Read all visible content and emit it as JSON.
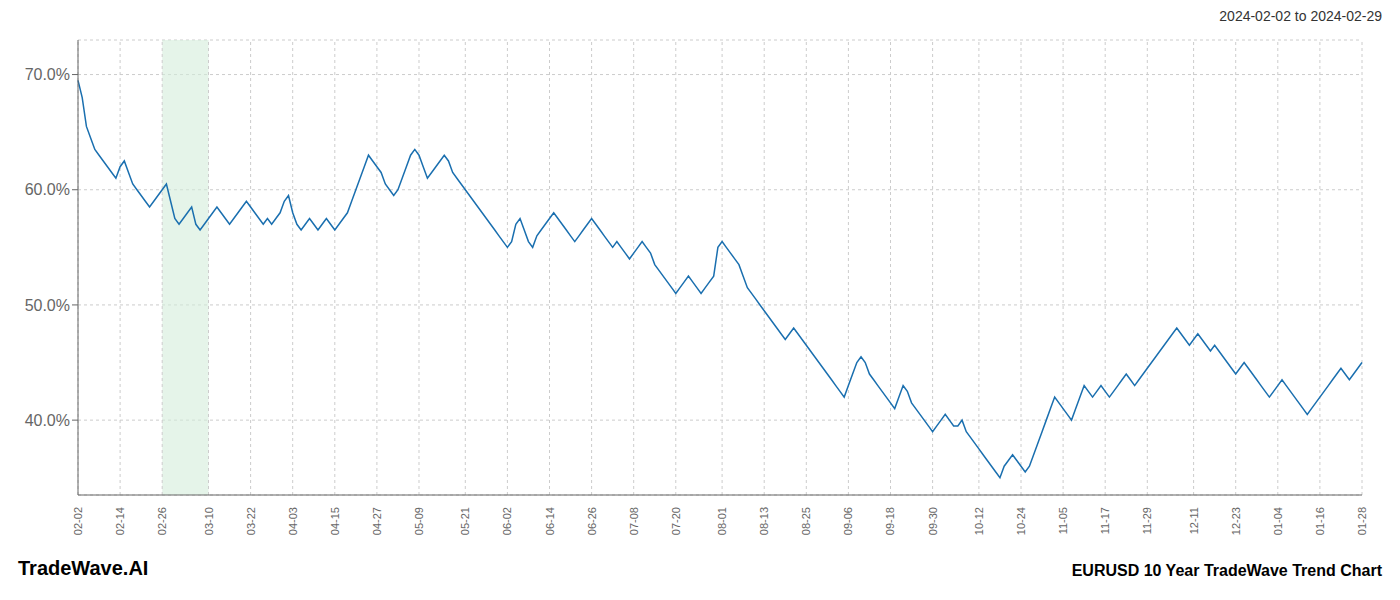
{
  "chart_data": {
    "type": "line",
    "title": "EURUSD 10 Year TradeWave Trend Chart",
    "subtitle": "2024-02-02 to 2024-02-29",
    "annotations": [
      "TradeWave.AI"
    ],
    "color": "#1a6faf",
    "grid": true,
    "ylim": [
      33.5,
      73.0
    ],
    "yticks": [
      {
        "value": 40.0,
        "label": "40.0%"
      },
      {
        "value": 50.0,
        "label": "50.0%"
      },
      {
        "value": 60.0,
        "label": "60.0%"
      },
      {
        "value": 70.0,
        "label": "70.0%"
      }
    ],
    "shade": {
      "from": "02-26",
      "to": "03-10",
      "color": "#d4edda"
    },
    "categories": [
      "02-02",
      null,
      null,
      null,
      null,
      null,
      null,
      null,
      null,
      null,
      "02-14",
      null,
      null,
      null,
      null,
      null,
      null,
      null,
      null,
      null,
      "02-26",
      null,
      null,
      null,
      null,
      null,
      null,
      null,
      null,
      null,
      null,
      "03-10",
      null,
      null,
      null,
      null,
      null,
      null,
      null,
      null,
      null,
      "03-22",
      null,
      null,
      null,
      null,
      null,
      null,
      null,
      null,
      null,
      "04-03",
      null,
      null,
      null,
      null,
      null,
      null,
      null,
      null,
      null,
      "04-15",
      null,
      null,
      null,
      null,
      null,
      null,
      null,
      null,
      null,
      "04-27",
      null,
      null,
      null,
      null,
      null,
      null,
      null,
      null,
      null,
      "05-09",
      null,
      null,
      null,
      null,
      null,
      null,
      null,
      null,
      null,
      null,
      "05-21",
      null,
      null,
      null,
      null,
      null,
      null,
      null,
      null,
      null,
      "06-02",
      null,
      null,
      null,
      null,
      null,
      null,
      null,
      null,
      null,
      "06-14",
      null,
      null,
      null,
      null,
      null,
      null,
      null,
      null,
      null,
      "06-26",
      null,
      null,
      null,
      null,
      null,
      null,
      null,
      null,
      null,
      "07-08",
      null,
      null,
      null,
      null,
      null,
      null,
      null,
      null,
      null,
      "07-20",
      null,
      null,
      null,
      null,
      null,
      null,
      null,
      null,
      null,
      null,
      "08-01",
      null,
      null,
      null,
      null,
      null,
      null,
      null,
      null,
      null,
      "08-13",
      null,
      null,
      null,
      null,
      null,
      null,
      null,
      null,
      null,
      "08-25",
      null,
      null,
      null,
      null,
      null,
      null,
      null,
      null,
      null,
      "09-06",
      null,
      null,
      null,
      null,
      null,
      null,
      null,
      null,
      null,
      "09-18",
      null,
      null,
      null,
      null,
      null,
      null,
      null,
      null,
      null,
      "09-30",
      null,
      null,
      null,
      null,
      null,
      null,
      null,
      null,
      null,
      null,
      "10-12",
      null,
      null,
      null,
      null,
      null,
      null,
      null,
      null,
      null,
      "10-24",
      null,
      null,
      null,
      null,
      null,
      null,
      null,
      null,
      null,
      "11-05",
      null,
      null,
      null,
      null,
      null,
      null,
      null,
      null,
      null,
      "11-17",
      null,
      null,
      null,
      null,
      null,
      null,
      null,
      null,
      null,
      "11-29",
      null,
      null,
      null,
      null,
      null,
      null,
      null,
      null,
      null,
      null,
      "12-11",
      null,
      null,
      null,
      null,
      null,
      null,
      null,
      null,
      null,
      "12-23",
      null,
      null,
      null,
      null,
      null,
      null,
      null,
      null,
      null,
      "01-04",
      null,
      null,
      null,
      null,
      null,
      null,
      null,
      null,
      null,
      "01-16",
      null,
      null,
      null,
      null,
      null,
      null,
      null,
      null,
      null,
      "01-28"
    ],
    "values": [
      69.5,
      68.0,
      65.5,
      64.5,
      63.5,
      63.0,
      62.5,
      62.0,
      61.5,
      61.0,
      62.0,
      62.5,
      61.5,
      60.5,
      60.0,
      59.5,
      59.0,
      58.5,
      59.0,
      59.5,
      60.0,
      60.5,
      59.0,
      57.5,
      57.0,
      57.5,
      58.0,
      58.5,
      57.0,
      56.5,
      57.0,
      57.5,
      58.0,
      58.5,
      58.0,
      57.5,
      57.0,
      57.5,
      58.0,
      58.5,
      59.0,
      58.5,
      58.0,
      57.5,
      57.0,
      57.5,
      57.0,
      57.5,
      58.0,
      59.0,
      59.5,
      58.0,
      57.0,
      56.5,
      57.0,
      57.5,
      57.0,
      56.5,
      57.0,
      57.5,
      57.0,
      56.5,
      57.0,
      57.5,
      58.0,
      59.0,
      60.0,
      61.0,
      62.0,
      63.0,
      62.5,
      62.0,
      61.5,
      60.5,
      60.0,
      59.5,
      60.0,
      61.0,
      62.0,
      63.0,
      63.5,
      63.0,
      62.0,
      61.0,
      61.5,
      62.0,
      62.5,
      63.0,
      62.5,
      61.5,
      61.0,
      60.5,
      60.0,
      59.5,
      59.0,
      58.5,
      58.0,
      57.5,
      57.0,
      56.5,
      56.0,
      55.5,
      55.0,
      55.5,
      57.0,
      57.5,
      56.5,
      55.5,
      55.0,
      56.0,
      56.5,
      57.0,
      57.5,
      58.0,
      57.5,
      57.0,
      56.5,
      56.0,
      55.5,
      56.0,
      56.5,
      57.0,
      57.5,
      57.0,
      56.5,
      56.0,
      55.5,
      55.0,
      55.5,
      55.0,
      54.5,
      54.0,
      54.5,
      55.0,
      55.5,
      55.0,
      54.5,
      53.5,
      53.0,
      52.5,
      52.0,
      51.5,
      51.0,
      51.5,
      52.0,
      52.5,
      52.0,
      51.5,
      51.0,
      51.5,
      52.0,
      52.5,
      55.0,
      55.5,
      55.0,
      54.5,
      54.0,
      53.5,
      52.5,
      51.5,
      51.0,
      50.5,
      50.0,
      49.5,
      49.0,
      48.5,
      48.0,
      47.5,
      47.0,
      47.5,
      48.0,
      47.5,
      47.0,
      46.5,
      46.0,
      45.5,
      45.0,
      44.5,
      44.0,
      43.5,
      43.0,
      42.5,
      42.0,
      43.0,
      44.0,
      45.0,
      45.5,
      45.0,
      44.0,
      43.5,
      43.0,
      42.5,
      42.0,
      41.5,
      41.0,
      42.0,
      43.0,
      42.5,
      41.5,
      41.0,
      40.5,
      40.0,
      39.5,
      39.0,
      39.5,
      40.0,
      40.5,
      40.0,
      39.5,
      39.5,
      40.0,
      39.0,
      38.5,
      38.0,
      37.5,
      37.0,
      36.5,
      36.0,
      35.5,
      35.0,
      36.0,
      36.5,
      37.0,
      36.5,
      36.0,
      35.5,
      36.0,
      37.0,
      38.0,
      39.0,
      40.0,
      41.0,
      42.0,
      41.5,
      41.0,
      40.5,
      40.0,
      41.0,
      42.0,
      43.0,
      42.5,
      42.0,
      42.5,
      43.0,
      42.5,
      42.0,
      42.5,
      43.0,
      43.5,
      44.0,
      43.5,
      43.0,
      43.5,
      44.0,
      44.5,
      45.0,
      45.5,
      46.0,
      46.5,
      47.0,
      47.5,
      48.0,
      47.5,
      47.0,
      46.5,
      47.0,
      47.5,
      47.0,
      46.5,
      46.0,
      46.5,
      46.0,
      45.5,
      45.0,
      44.5,
      44.0,
      44.5,
      45.0,
      44.5,
      44.0,
      43.5,
      43.0,
      42.5,
      42.0,
      42.5,
      43.0,
      43.5,
      43.0,
      42.5,
      42.0,
      41.5,
      41.0,
      40.5,
      41.0,
      41.5,
      42.0,
      42.5,
      43.0,
      43.5,
      44.0,
      44.5,
      44.0,
      43.5,
      44.0,
      44.5,
      45.0
    ]
  }
}
